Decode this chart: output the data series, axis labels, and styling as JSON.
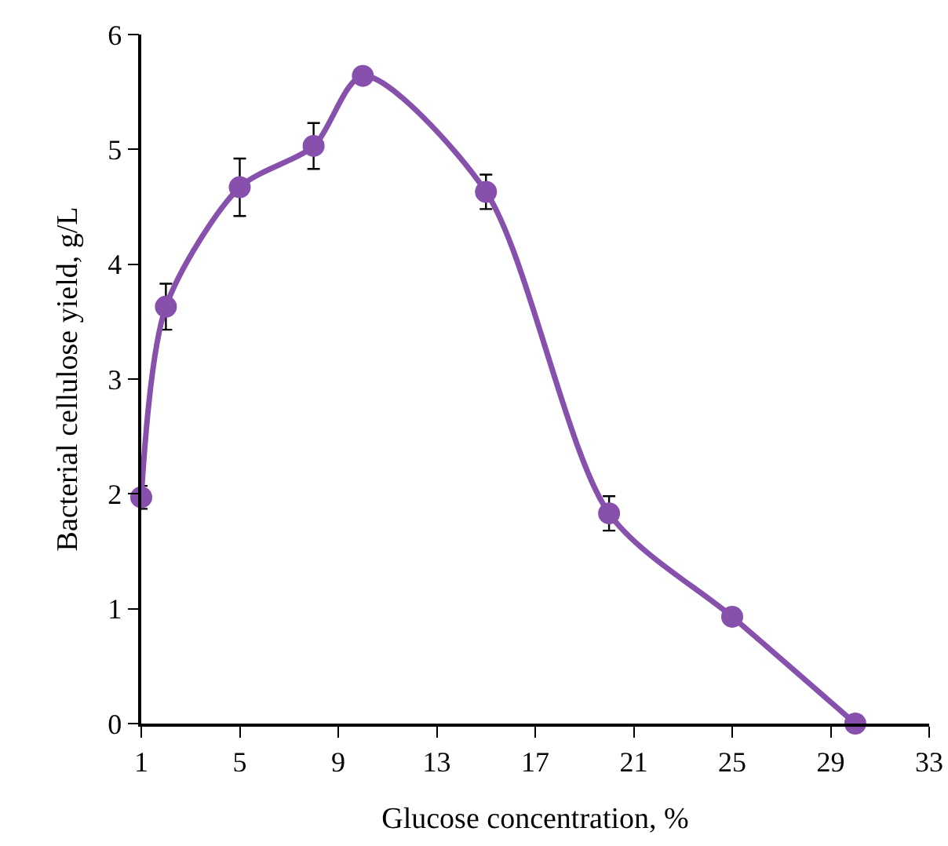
{
  "chart_data": {
    "type": "line",
    "xlabel": "Glucose concentration, %",
    "ylabel": "Bacterial cellulose yield, g/L",
    "x": [
      1,
      2,
      5,
      8,
      10,
      15,
      20,
      25,
      30
    ],
    "series": [
      {
        "color": "#8650ac",
        "values": [
          1.97,
          3.63,
          4.67,
          5.03,
          5.64,
          4.63,
          1.83,
          0.93,
          0
        ],
        "errors": [
          0.1,
          0.2,
          0.25,
          0.2,
          null,
          0.15,
          0.15,
          null,
          null
        ]
      }
    ],
    "xlim": [
      1,
      33
    ],
    "xticks": [
      1,
      5,
      9,
      13,
      17,
      21,
      25,
      29,
      33
    ],
    "ylim": [
      0,
      6
    ],
    "yticks": [
      0,
      1,
      2,
      3,
      4,
      5,
      6
    ],
    "marker": "circle",
    "line_style": "solid"
  }
}
